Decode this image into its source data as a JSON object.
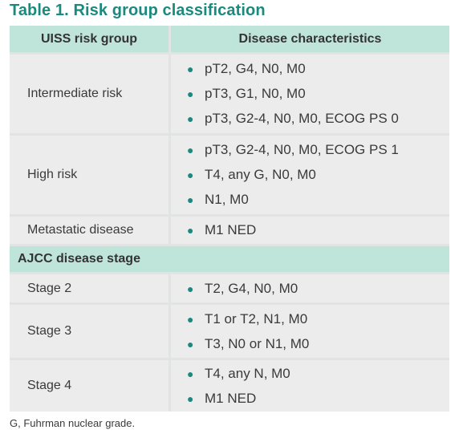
{
  "title": "Table 1. Risk group classification",
  "header": {
    "col1": "UISS risk group",
    "col2": "Disease characteristics"
  },
  "uiss_rows": [
    {
      "label": "Intermediate risk",
      "items": [
        "pT2, G4, N0, M0",
        "pT3, G1, N0, M0",
        "pT3, G2-4, N0, M0, ECOG PS 0"
      ]
    },
    {
      "label": "High risk",
      "items": [
        "pT3, G2-4, N0, M0, ECOG PS 1",
        "T4, any G, N0, M0",
        "N1, M0"
      ]
    },
    {
      "label": "Metastatic disease",
      "items": [
        "M1 NED"
      ]
    }
  ],
  "section2_title": "AJCC disease stage",
  "ajcc_rows": [
    {
      "label": "Stage 2",
      "items": [
        "T2, G4, N0, M0"
      ]
    },
    {
      "label": "Stage 3",
      "items": [
        "T1 or T2, N1, M0",
        "T3, N0 or N1, M0"
      ]
    },
    {
      "label": "Stage 4",
      "items": [
        "T4, any N, M0",
        "M1 NED"
      ]
    }
  ],
  "footnote": "G, Fuhrman nuclear grade.",
  "colors": {
    "accent": "#1a8a7e",
    "header_bg": "#bfe4da",
    "cell_bg": "#ececec"
  }
}
